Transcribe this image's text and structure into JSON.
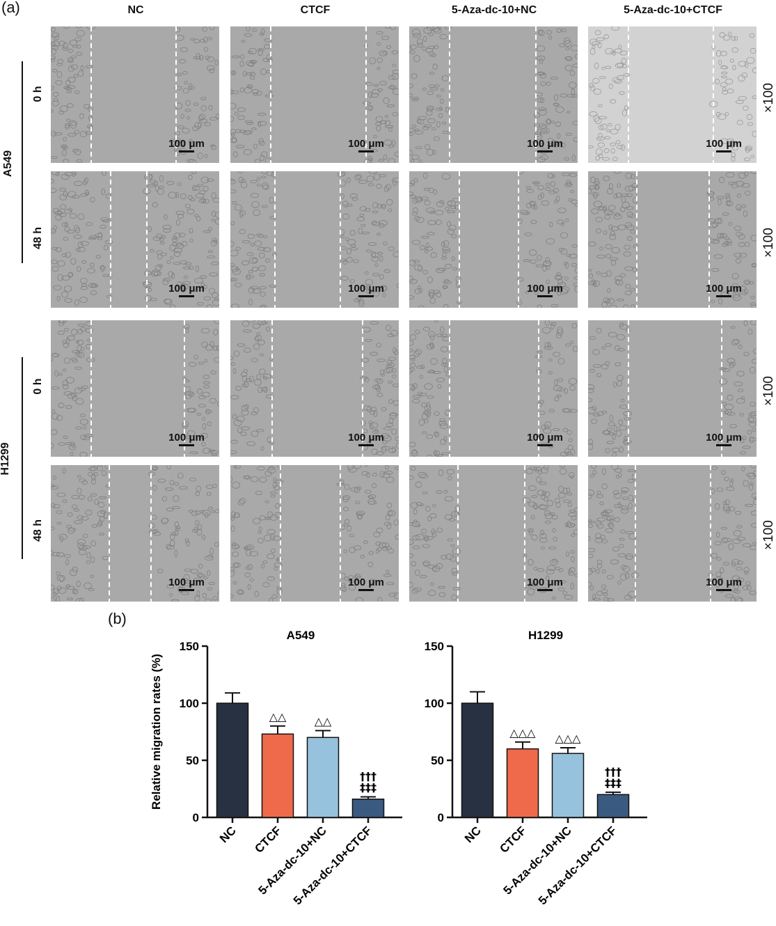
{
  "panel_a": {
    "label": "(a)",
    "columns": [
      "NC",
      "CTCF",
      "5-Aza-dc-10+NC",
      "5-Aza-dc-10+CTCF"
    ],
    "cell_lines": [
      "A549",
      "H1299"
    ],
    "timepoints": [
      "0 h",
      "48 h"
    ],
    "magnification": "×100",
    "scale_bar": "100 μm"
  },
  "panel_b": {
    "label": "(b)"
  },
  "chart_data": [
    {
      "type": "bar",
      "title": "A549",
      "ylabel": "Relative migration rates (%)",
      "categories": [
        "NC",
        "CTCF",
        "5-Aza-dc-10+NC",
        "5-Aza-dc-10+CTCF"
      ],
      "values": [
        100,
        73,
        70,
        16
      ],
      "errors": [
        9,
        7,
        6,
        2
      ],
      "annotations": [
        "",
        "△△",
        "△△",
        "†††\n‡‡‡"
      ],
      "colors": [
        "#283142",
        "#ee6a4a",
        "#97c2dd",
        "#3a5a80"
      ],
      "ylim": [
        0,
        150
      ],
      "yticks": [
        0,
        50,
        100,
        150
      ]
    },
    {
      "type": "bar",
      "title": "H1299",
      "ylabel": "",
      "categories": [
        "NC",
        "CTCF",
        "5-Aza-dc-10+NC",
        "5-Aza-dc-10+CTCF"
      ],
      "values": [
        100,
        60,
        56,
        20
      ],
      "errors": [
        10,
        6,
        5,
        2
      ],
      "annotations": [
        "",
        "△△△",
        "△△△",
        "†††\n‡‡‡"
      ],
      "colors": [
        "#283142",
        "#ee6a4a",
        "#97c2dd",
        "#3a5a80"
      ],
      "ylim": [
        0,
        150
      ],
      "yticks": [
        0,
        50,
        100,
        150
      ]
    }
  ]
}
